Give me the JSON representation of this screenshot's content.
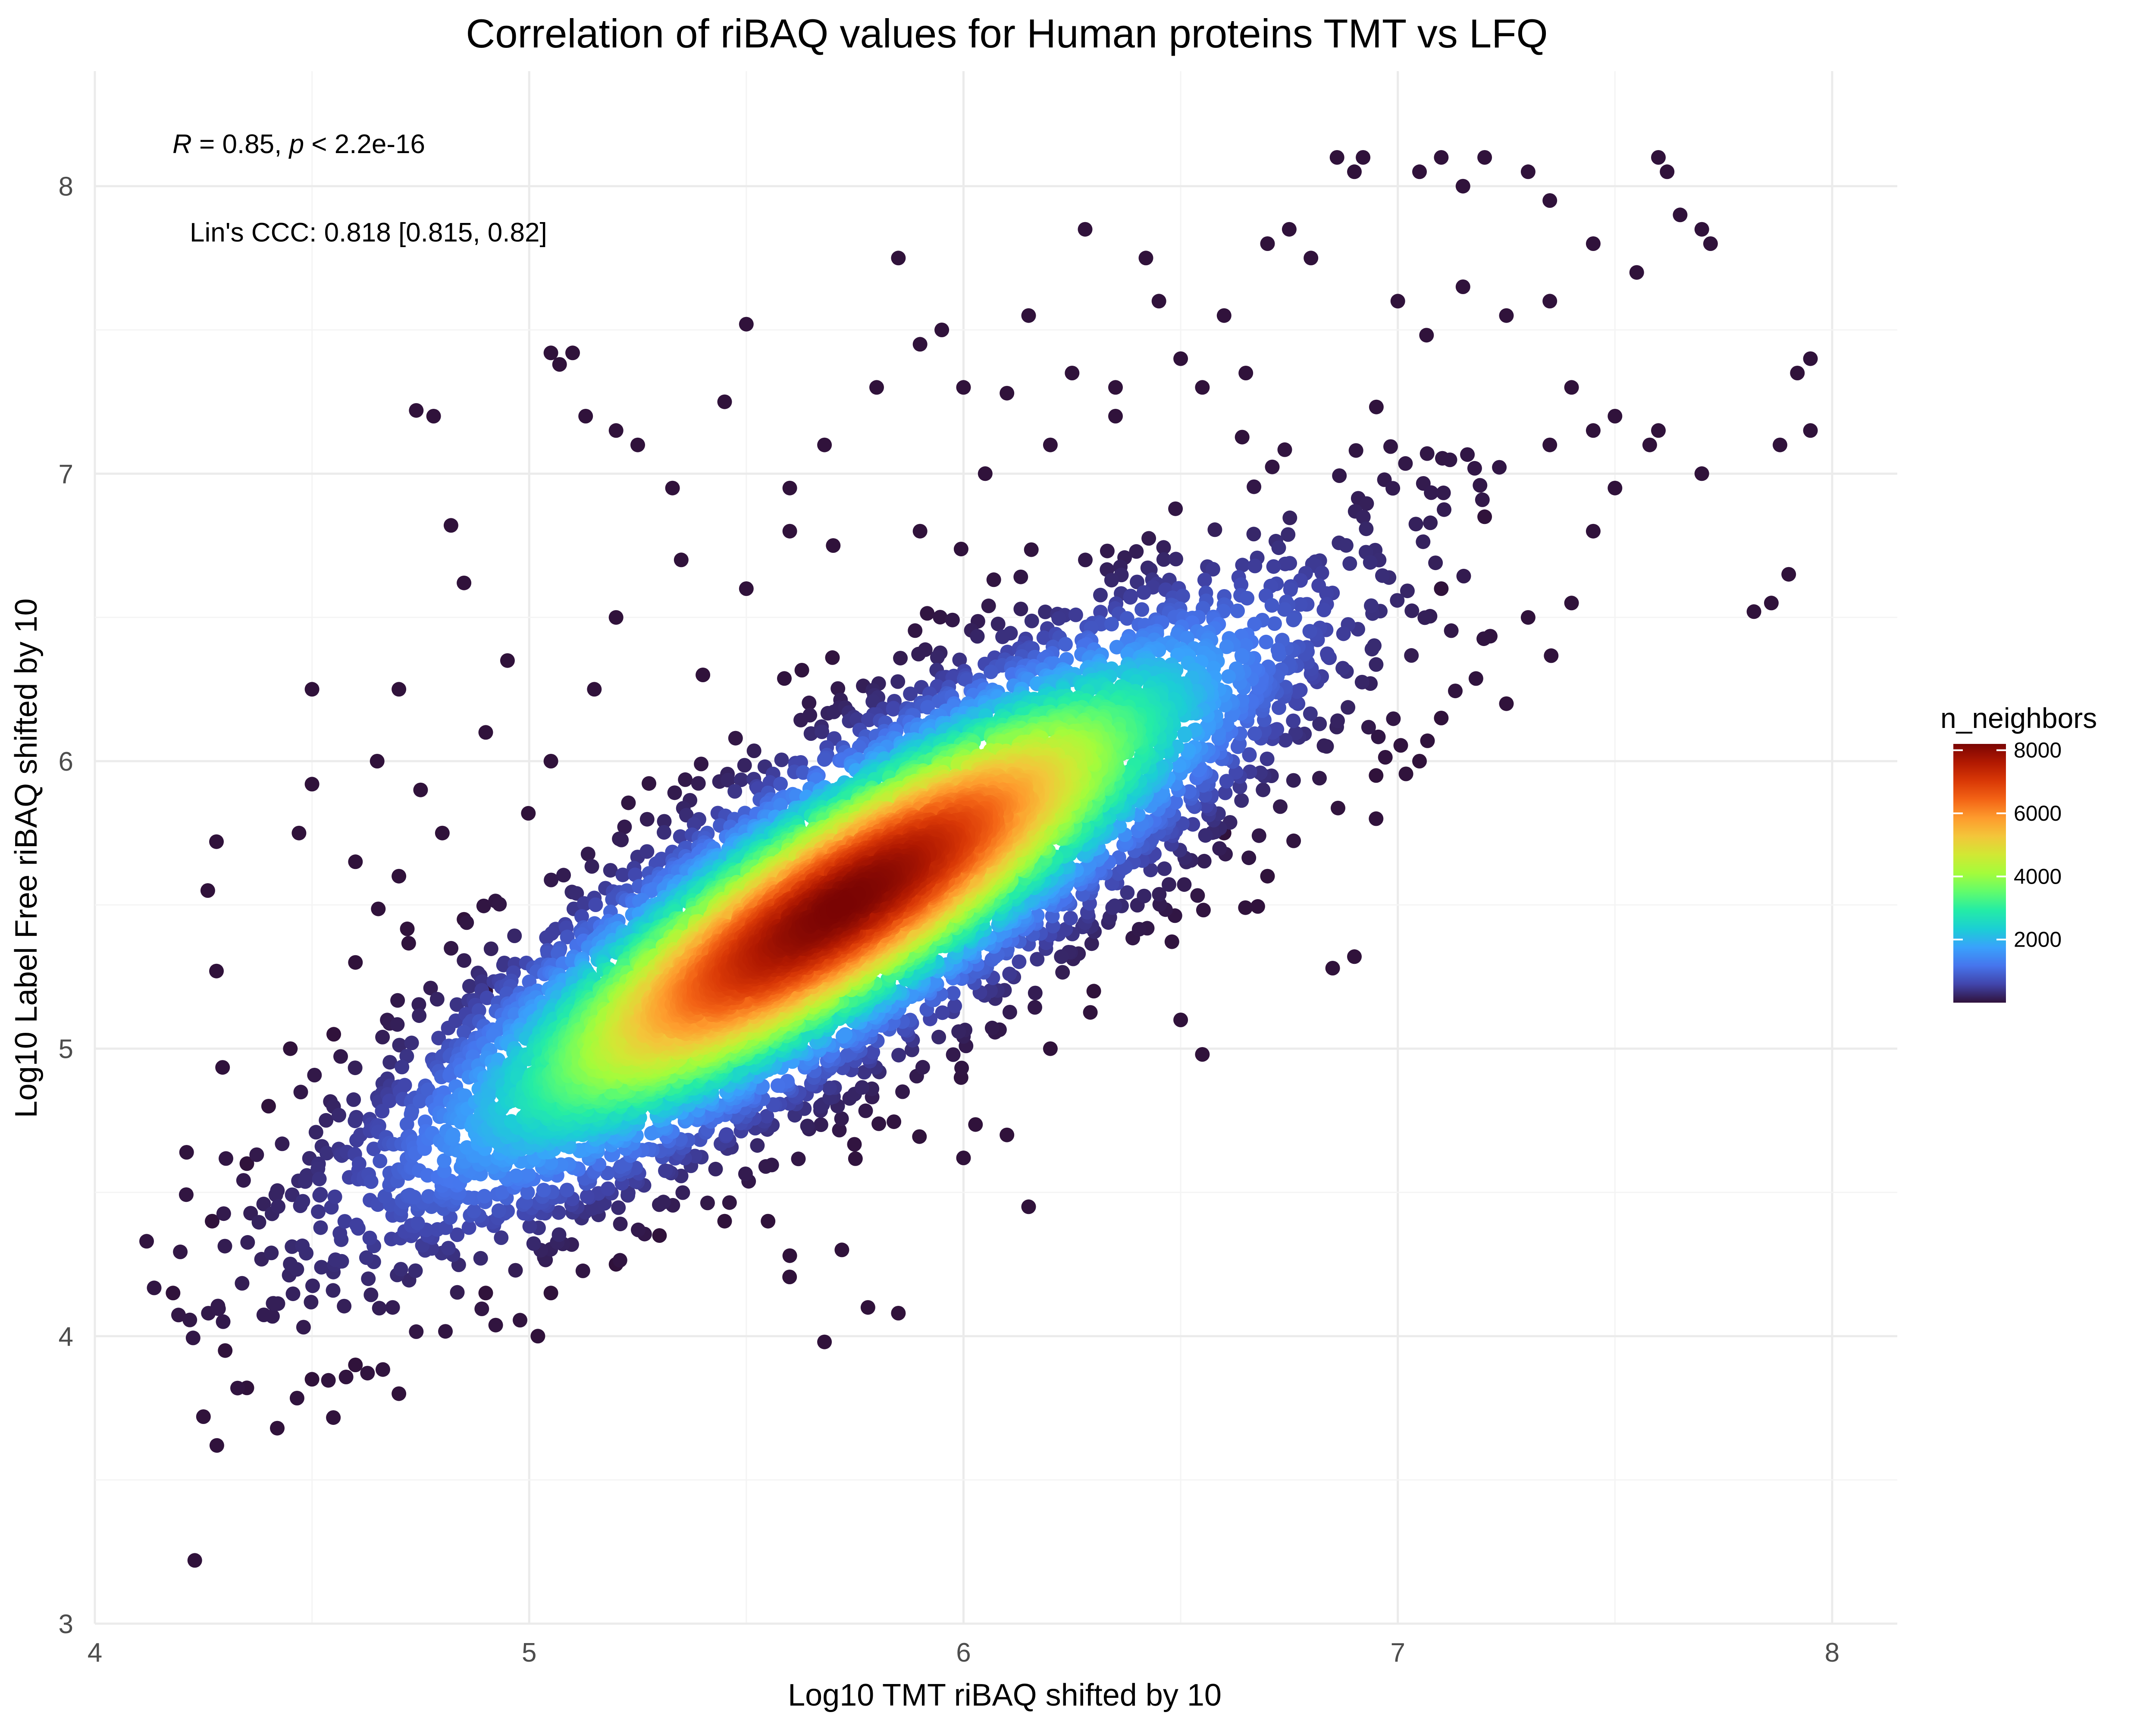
{
  "chart_data": {
    "type": "scatter",
    "title": "Correlation of riBAQ values for Human proteins TMT vs LFQ",
    "xlabel": "Log10 TMT riBAQ shifted by 10",
    "ylabel": "Log10 Label Free riBAQ shifted by 10",
    "xlim": [
      4.0,
      8.15
    ],
    "ylim": [
      3.0,
      8.4
    ],
    "x_ticks": [
      "4",
      "5",
      "6",
      "7",
      "8"
    ],
    "y_ticks": [
      "3",
      "4",
      "5",
      "6",
      "7",
      "8"
    ],
    "grid": true,
    "annotations": {
      "correlation": {
        "r_symbol": "R",
        "r_text": " = 0.85, ",
        "p_symbol": "p",
        "p_text": " < 2.2e-16"
      },
      "ccc": "Lin's CCC: 0.818 [0.815, 0.82]"
    },
    "color_scale": {
      "title": "n_neighbors",
      "min": 0,
      "max": 8000,
      "ticks": [
        "2000",
        "4000",
        "6000",
        "8000"
      ],
      "colors": [
        "#30123b",
        "#4145ab",
        "#4675ed",
        "#39a2fc",
        "#1bcfd4",
        "#24eca6",
        "#61fc6c",
        "#a4fc3b",
        "#d1e834",
        "#f3c63a",
        "#fe9b2d",
        "#f36315",
        "#d93806",
        "#b11901",
        "#7a0403"
      ]
    },
    "density_model": {
      "center": [
        5.72,
        5.5
      ],
      "slope": 1.02,
      "sd_along": 0.62,
      "sd_across": 0.17,
      "max_neighbors": 8100
    },
    "outliers": [
      [
        4.23,
        3.22
      ],
      [
        4.25,
        3.72
      ],
      [
        4.42,
        3.68
      ],
      [
        4.18,
        4.15
      ],
      [
        4.27,
        4.4
      ],
      [
        4.28,
        5.72
      ],
      [
        4.26,
        5.55
      ],
      [
        4.28,
        5.27
      ],
      [
        4.5,
        6.25
      ],
      [
        4.5,
        5.92
      ],
      [
        4.47,
        5.75
      ],
      [
        4.78,
        7.2
      ],
      [
        4.74,
        7.22
      ],
      [
        4.82,
        6.82
      ],
      [
        4.85,
        6.62
      ],
      [
        4.95,
        6.35
      ],
      [
        5.05,
        7.42
      ],
      [
        5.1,
        7.42
      ],
      [
        5.07,
        7.38
      ],
      [
        5.13,
        7.2
      ],
      [
        5.2,
        7.15
      ],
      [
        5.25,
        7.1
      ],
      [
        5.33,
        6.95
      ],
      [
        5.45,
        7.25
      ],
      [
        5.5,
        7.52
      ],
      [
        5.35,
        6.7
      ],
      [
        5.2,
        6.5
      ],
      [
        5.15,
        6.25
      ],
      [
        5.05,
        6.0
      ],
      [
        4.9,
        6.1
      ],
      [
        4.7,
        6.25
      ],
      [
        4.65,
        6.0
      ],
      [
        5.6,
        6.95
      ],
      [
        5.68,
        7.1
      ],
      [
        5.8,
        7.3
      ],
      [
        5.85,
        7.75
      ],
      [
        5.9,
        7.45
      ],
      [
        5.95,
        7.5
      ],
      [
        6.0,
        7.3
      ],
      [
        6.1,
        7.28
      ],
      [
        6.15,
        7.55
      ],
      [
        6.25,
        7.35
      ],
      [
        6.28,
        7.85
      ],
      [
        6.35,
        7.3
      ],
      [
        6.42,
        7.75
      ],
      [
        6.45,
        7.6
      ],
      [
        6.5,
        7.4
      ],
      [
        6.55,
        7.3
      ],
      [
        6.6,
        7.55
      ],
      [
        6.7,
        7.8
      ],
      [
        6.75,
        7.85
      ],
      [
        6.8,
        7.75
      ],
      [
        6.9,
        8.05
      ],
      [
        6.92,
        8.1
      ],
      [
        6.86,
        8.1
      ],
      [
        7.05,
        8.05
      ],
      [
        7.1,
        8.1
      ],
      [
        7.2,
        8.1
      ],
      [
        7.15,
        8.0
      ],
      [
        7.3,
        8.05
      ],
      [
        7.35,
        7.95
      ],
      [
        7.45,
        7.8
      ],
      [
        7.55,
        7.7
      ],
      [
        7.6,
        8.1
      ],
      [
        7.62,
        8.05
      ],
      [
        7.65,
        7.9
      ],
      [
        7.7,
        7.85
      ],
      [
        7.72,
        7.8
      ],
      [
        7.6,
        7.15
      ],
      [
        7.58,
        7.1
      ],
      [
        7.7,
        7.0
      ],
      [
        7.82,
        6.52
      ],
      [
        7.86,
        6.55
      ],
      [
        7.9,
        6.65
      ],
      [
        7.88,
        7.1
      ],
      [
        7.92,
        7.35
      ],
      [
        7.95,
        7.4
      ],
      [
        7.95,
        7.15
      ],
      [
        7.5,
        6.95
      ],
      [
        7.45,
        6.8
      ],
      [
        7.4,
        6.55
      ],
      [
        7.3,
        6.5
      ],
      [
        7.25,
        6.2
      ],
      [
        7.1,
        6.15
      ],
      [
        7.05,
        6.0
      ],
      [
        6.95,
        5.95
      ],
      [
        6.9,
        5.32
      ],
      [
        6.85,
        5.28
      ],
      [
        6.7,
        5.6
      ],
      [
        6.6,
        5.75
      ],
      [
        6.5,
        5.1
      ],
      [
        6.55,
        4.98
      ],
      [
        6.3,
        5.2
      ],
      [
        6.2,
        5.0
      ],
      [
        6.1,
        4.7
      ],
      [
        6.15,
        4.45
      ],
      [
        6.0,
        4.62
      ],
      [
        5.85,
        4.08
      ],
      [
        5.78,
        4.1
      ],
      [
        5.72,
        4.3
      ],
      [
        5.68,
        3.98
      ],
      [
        5.6,
        4.28
      ],
      [
        5.55,
        4.4
      ],
      [
        5.45,
        4.4
      ],
      [
        5.3,
        4.35
      ],
      [
        5.2,
        4.25
      ],
      [
        5.05,
        4.15
      ],
      [
        5.02,
        4.0
      ],
      [
        4.9,
        4.15
      ],
      [
        4.7,
        3.8
      ],
      [
        4.6,
        3.9
      ],
      [
        4.5,
        3.85
      ],
      [
        4.35,
        3.82
      ],
      [
        4.3,
        3.95
      ],
      [
        4.35,
        4.6
      ],
      [
        4.4,
        4.8
      ],
      [
        4.45,
        5.0
      ],
      [
        4.55,
        5.05
      ],
      [
        4.6,
        5.3
      ],
      [
        4.6,
        5.65
      ],
      [
        4.7,
        5.6
      ],
      [
        4.75,
        5.9
      ],
      [
        4.8,
        5.75
      ],
      [
        4.85,
        5.45
      ],
      [
        4.9,
        5.2
      ],
      [
        5.4,
        6.3
      ],
      [
        5.5,
        6.6
      ],
      [
        5.6,
        6.8
      ],
      [
        5.7,
        6.75
      ],
      [
        5.9,
        6.8
      ],
      [
        6.05,
        7.0
      ],
      [
        6.2,
        7.1
      ],
      [
        6.35,
        7.2
      ],
      [
        6.65,
        7.35
      ],
      [
        7.0,
        7.6
      ],
      [
        7.15,
        7.65
      ],
      [
        7.25,
        7.55
      ],
      [
        7.35,
        7.6
      ],
      [
        7.4,
        7.3
      ],
      [
        7.45,
        7.15
      ],
      [
        7.5,
        7.2
      ],
      [
        7.35,
        7.1
      ],
      [
        7.2,
        6.85
      ],
      [
        7.1,
        6.6
      ]
    ]
  }
}
